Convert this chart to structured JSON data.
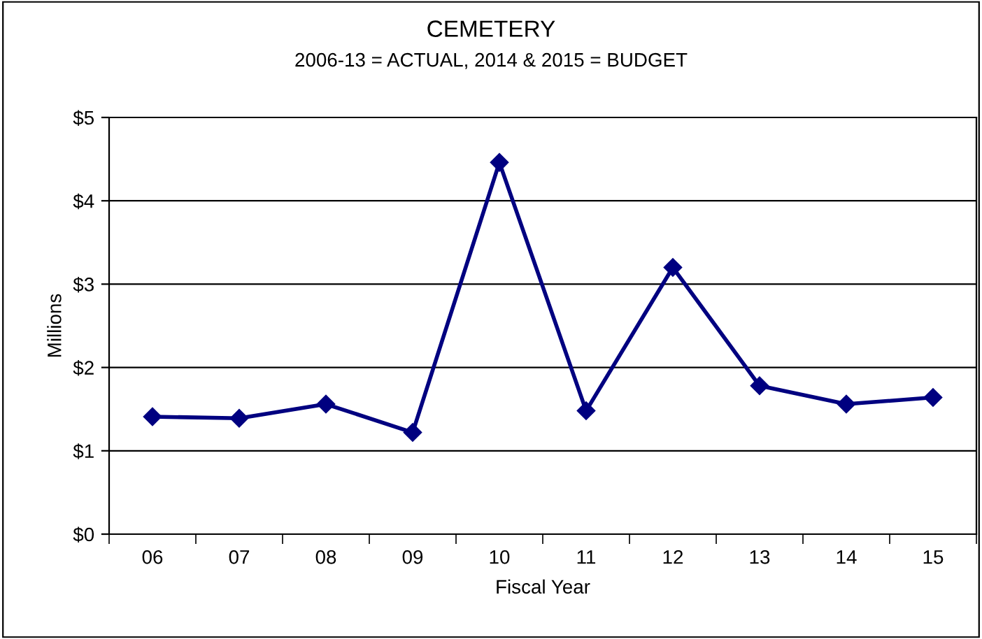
{
  "chart_data": {
    "type": "line",
    "title": "CEMETERY",
    "subtitle": "2006-13 = ACTUAL, 2014 & 2015 = BUDGET",
    "xlabel": "Fiscal Year",
    "ylabel": "Millions",
    "categories": [
      "06",
      "07",
      "08",
      "09",
      "10",
      "11",
      "12",
      "13",
      "14",
      "15"
    ],
    "series": [
      {
        "color": "#000080",
        "values": [
          1.41,
          1.39,
          1.56,
          1.22,
          4.46,
          1.48,
          3.2,
          1.78,
          1.56,
          1.64
        ]
      }
    ],
    "ylim": [
      0,
      5
    ],
    "yticks": [
      {
        "value": 0,
        "label": "$0"
      },
      {
        "value": 1,
        "label": "$1"
      },
      {
        "value": 2,
        "label": "$2"
      },
      {
        "value": 3,
        "label": "$3"
      },
      {
        "value": 4,
        "label": "$4"
      },
      {
        "value": 5,
        "label": "$5"
      }
    ],
    "grid": "y",
    "marker": "diamond",
    "line_style": "solid"
  }
}
